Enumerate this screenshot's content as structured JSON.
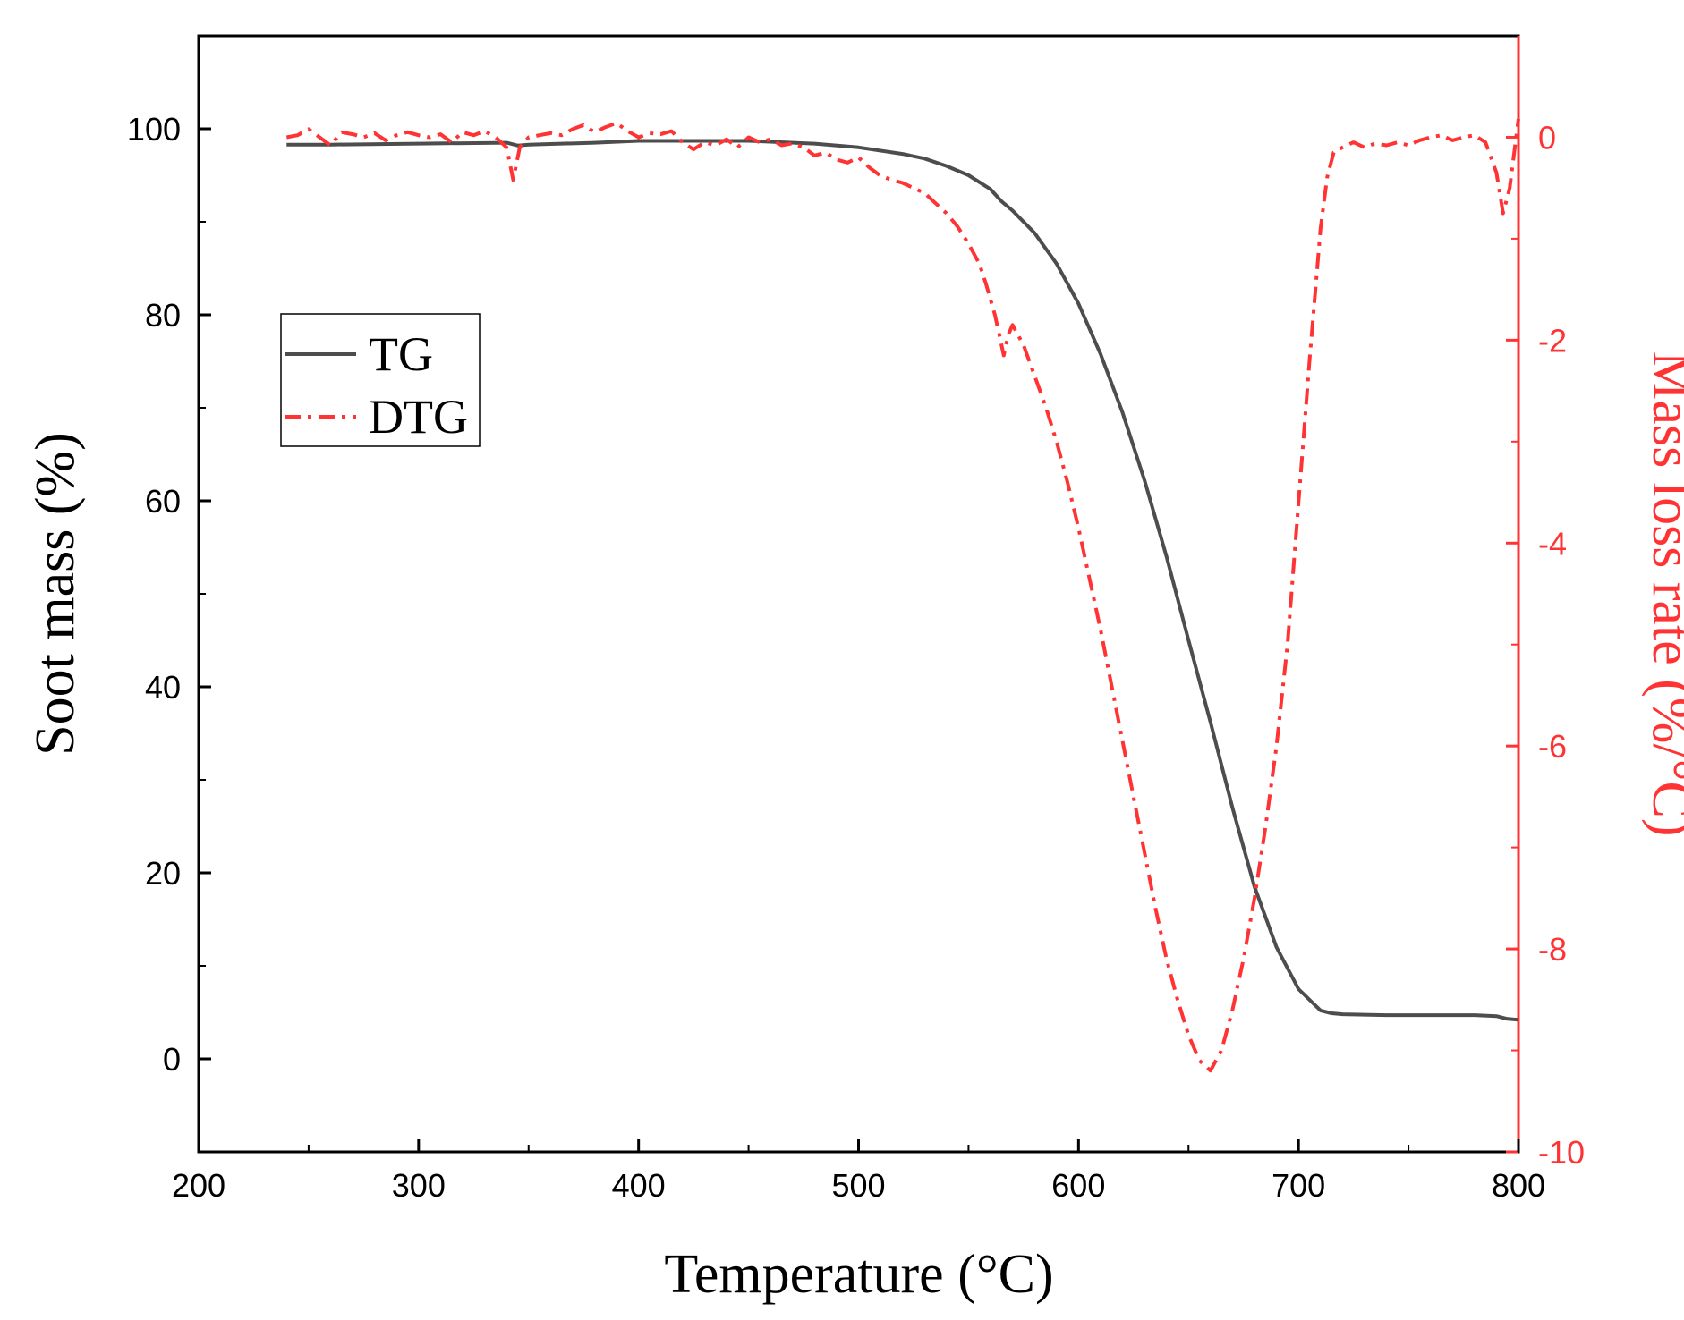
{
  "chart_data": {
    "type": "line",
    "title": "",
    "xlabel": "Temperature (°C)",
    "ylabel": "Soot mass (%)",
    "y2label": "Mass loss rate (%/°C)",
    "xlim": [
      200,
      800
    ],
    "ylim": [
      -10,
      110
    ],
    "y2lim": [
      -10,
      1
    ],
    "x_ticks": [
      200,
      300,
      400,
      500,
      600,
      700,
      800
    ],
    "y_ticks": [
      0,
      20,
      40,
      60,
      80,
      100
    ],
    "y2_ticks": [
      0,
      -2,
      -4,
      -6,
      -8,
      -10
    ],
    "legend": {
      "position": "middle-left",
      "entries": [
        "TG",
        "DTG"
      ]
    },
    "colors": {
      "TG": "#4d4d4d",
      "DTG": "#ff3333",
      "right_axis": "#ff3333",
      "left_axis": "#000000"
    },
    "series": [
      {
        "name": "TG",
        "axis": "left",
        "style": "solid",
        "x": [
          240,
          260,
          300,
          340,
          345,
          350,
          380,
          400,
          450,
          480,
          500,
          520,
          530,
          540,
          550,
          560,
          565,
          570,
          580,
          590,
          600,
          610,
          620,
          630,
          640,
          650,
          660,
          670,
          680,
          690,
          700,
          710,
          715,
          720,
          740,
          760,
          780,
          790,
          795,
          800
        ],
        "y": [
          98.3,
          98.3,
          98.4,
          98.5,
          98.2,
          98.3,
          98.5,
          98.7,
          98.7,
          98.4,
          98.0,
          97.3,
          96.8,
          96.0,
          95.0,
          93.5,
          92.2,
          91.2,
          88.8,
          85.5,
          81.2,
          75.8,
          69.5,
          62.2,
          54.0,
          45.0,
          36.2,
          27.0,
          18.5,
          12.0,
          7.5,
          5.2,
          4.9,
          4.8,
          4.7,
          4.7,
          4.7,
          4.6,
          4.3,
          4.2
        ]
      },
      {
        "name": "DTG",
        "axis": "right",
        "style": "dash-dot",
        "x": [
          240,
          245,
          250,
          255,
          260,
          265,
          270,
          275,
          280,
          285,
          290,
          295,
          300,
          305,
          310,
          315,
          320,
          325,
          330,
          335,
          340,
          343,
          346,
          350,
          355,
          360,
          365,
          370,
          375,
          380,
          385,
          390,
          395,
          400,
          405,
          410,
          415,
          420,
          425,
          430,
          435,
          440,
          445,
          450,
          455,
          460,
          465,
          470,
          475,
          480,
          485,
          490,
          495,
          500,
          505,
          510,
          515,
          520,
          525,
          530,
          535,
          540,
          545,
          550,
          555,
          558,
          562,
          566,
          568,
          570,
          575,
          580,
          585,
          590,
          595,
          600,
          605,
          610,
          615,
          620,
          625,
          630,
          635,
          640,
          645,
          650,
          655,
          660,
          665,
          670,
          675,
          680,
          685,
          690,
          695,
          700,
          705,
          710,
          713,
          716,
          720,
          725,
          730,
          735,
          740,
          745,
          750,
          755,
          760,
          765,
          770,
          775,
          780,
          785,
          790,
          793,
          796,
          800
        ],
        "y": [
          0.0,
          0.02,
          0.08,
          0.0,
          -0.08,
          0.05,
          0.03,
          0.0,
          0.04,
          -0.03,
          0.02,
          0.05,
          0.02,
          0.0,
          0.03,
          -0.05,
          0.05,
          0.02,
          0.06,
          0.0,
          -0.1,
          -0.42,
          -0.1,
          0.0,
          0.02,
          0.04,
          0.02,
          0.08,
          0.12,
          0.05,
          0.1,
          0.14,
          0.06,
          0.0,
          0.04,
          0.03,
          0.06,
          -0.05,
          -0.12,
          -0.05,
          -0.08,
          -0.02,
          -0.1,
          0.0,
          -0.05,
          -0.02,
          -0.08,
          -0.06,
          -0.1,
          -0.18,
          -0.15,
          -0.22,
          -0.25,
          -0.2,
          -0.3,
          -0.38,
          -0.42,
          -0.45,
          -0.5,
          -0.55,
          -0.65,
          -0.75,
          -0.88,
          -1.05,
          -1.25,
          -1.45,
          -1.75,
          -2.15,
          -1.95,
          -1.85,
          -2.05,
          -2.35,
          -2.65,
          -3.0,
          -3.4,
          -3.85,
          -4.35,
          -4.85,
          -5.4,
          -5.95,
          -6.5,
          -7.05,
          -7.6,
          -8.1,
          -8.5,
          -8.85,
          -9.1,
          -9.2,
          -9.0,
          -8.6,
          -8.1,
          -7.5,
          -6.8,
          -6.0,
          -5.0,
          -3.6,
          -2.2,
          -0.9,
          -0.4,
          -0.15,
          -0.1,
          -0.05,
          -0.1,
          -0.06,
          -0.08,
          -0.05,
          -0.08,
          -0.03,
          0.0,
          0.02,
          -0.03,
          0.0,
          0.02,
          -0.05,
          -0.35,
          -0.75,
          -0.5,
          0.18
        ]
      }
    ]
  }
}
